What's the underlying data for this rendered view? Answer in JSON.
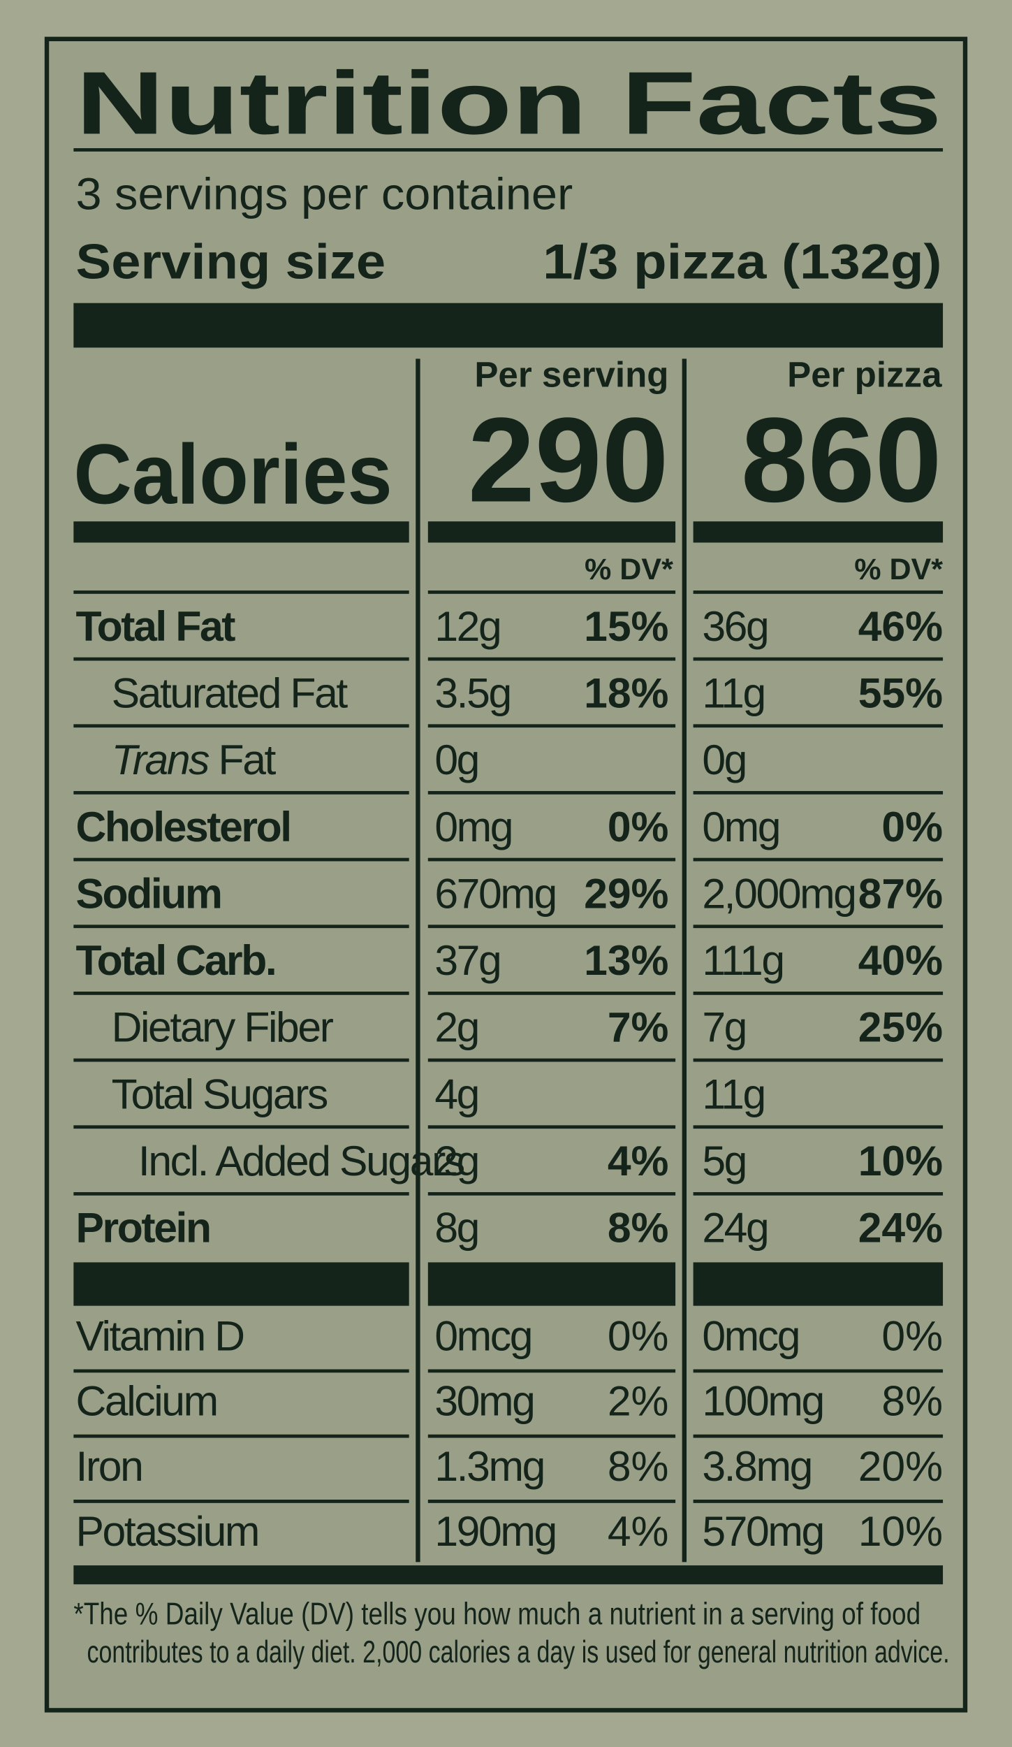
{
  "header": {
    "title": "Nutrition Facts",
    "servings": "3 servings per container",
    "serving_size_label": "Serving size",
    "serving_size": "1/3 pizza (132g)"
  },
  "calories": {
    "label": "Calories",
    "columns": [
      "Per serving",
      "Per pizza"
    ],
    "values": [
      290,
      860
    ],
    "dv_heading": "% DV*"
  },
  "rows": [
    {
      "name": "Total Fat",
      "per_serving": {
        "amount": "12g",
        "dv": "15%"
      },
      "per_pizza": {
        "amount": "36g",
        "dv": "46%"
      }
    },
    {
      "name": "Saturated Fat",
      "per_serving": {
        "amount": "3.5g",
        "dv": "18%"
      },
      "per_pizza": {
        "amount": "11g",
        "dv": "55%"
      }
    },
    {
      "italic": "Trans",
      "name": "Fat",
      "per_serving": {
        "amount": "0g"
      },
      "per_pizza": {
        "amount": "0g"
      }
    },
    {
      "name": "Cholesterol",
      "per_serving": {
        "amount": "0mg",
        "dv": "0%"
      },
      "per_pizza": {
        "amount": "0mg",
        "dv": "0%"
      }
    },
    {
      "name": "Sodium",
      "per_serving": {
        "amount": "670mg",
        "dv": "29%"
      },
      "per_pizza": {
        "amount": "2,000mg",
        "dv": "87%"
      }
    },
    {
      "name": "Total Carb.",
      "per_serving": {
        "amount": "37g",
        "dv": "13%"
      },
      "per_pizza": {
        "amount": "111g",
        "dv": "40%"
      }
    },
    {
      "name": "Dietary Fiber",
      "per_serving": {
        "amount": "2g",
        "dv": "7%"
      },
      "per_pizza": {
        "amount": "7g",
        "dv": "25%"
      }
    },
    {
      "name": "Total Sugars",
      "per_serving": {
        "amount": "4g"
      },
      "per_pizza": {
        "amount": "11g"
      }
    },
    {
      "name": "Incl. Added Sugars",
      "per_serving": {
        "amount": "2g",
        "dv": "4%"
      },
      "per_pizza": {
        "amount": "5g",
        "dv": "10%"
      }
    },
    {
      "name": "Protein",
      "per_serving": {
        "amount": "8g",
        "dv": "8%"
      },
      "per_pizza": {
        "amount": "24g",
        "dv": "24%"
      }
    }
  ],
  "vitamins": [
    {
      "name": "Vitamin D",
      "per_serving": {
        "amount": "0mcg",
        "dv": "0%"
      },
      "per_pizza": {
        "amount": "0mcg",
        "dv": "0%"
      }
    },
    {
      "name": "Calcium",
      "per_serving": {
        "amount": "30mg",
        "dv": "2%"
      },
      "per_pizza": {
        "amount": "100mg",
        "dv": "8%"
      }
    },
    {
      "name": "Iron",
      "per_serving": {
        "amount": "1.3mg",
        "dv": "8%"
      },
      "per_pizza": {
        "amount": "3.8mg",
        "dv": "20%"
      }
    },
    {
      "name": "Potassium",
      "per_serving": {
        "amount": "190mg",
        "dv": "4%"
      },
      "per_pizza": {
        "amount": "570mg",
        "dv": "10%"
      }
    }
  ],
  "footnote": [
    "*The % Daily Value (DV) tells you how much a nutrient in a serving of food",
    "contributes to a daily diet. 2,000 calories a day is used for general nutrition advice."
  ]
}
